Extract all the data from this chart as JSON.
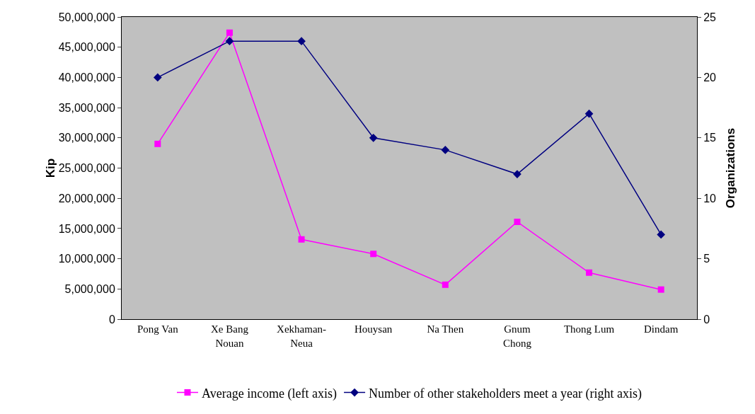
{
  "chart_data": {
    "type": "line",
    "ylabel": "Kip",
    "y2label": "Organizations",
    "categories": [
      "Pong Van",
      "Xe Bang\nNouan",
      "Xekhaman-\nNeua",
      "Houysan",
      "Na Then",
      "Gnum\nChong",
      "Thong Lum",
      "Dindam"
    ],
    "series": [
      {
        "name": "Average income (left axis)",
        "color": "#ff00ff",
        "marker": "square",
        "values": [
          29000000,
          47400000,
          13200000,
          10800000,
          5700000,
          16100000,
          7700000,
          4900000
        ]
      },
      {
        "name": "Number of other stakeholders meet a year (right axis)",
        "color": "#000080",
        "marker": "diamond",
        "axis": "y2",
        "values": [
          20,
          23,
          23,
          15,
          14,
          12,
          17,
          7
        ]
      }
    ],
    "ylim": [
      0,
      50000000
    ],
    "yticks": [
      {
        "value": 0,
        "label": "0"
      },
      {
        "value": 5000000,
        "label": "5,000,000"
      },
      {
        "value": 10000000,
        "label": "10,000,000"
      },
      {
        "value": 15000000,
        "label": "15,000,000"
      },
      {
        "value": 20000000,
        "label": "20,000,000"
      },
      {
        "value": 25000000,
        "label": "25,000,000"
      },
      {
        "value": 30000000,
        "label": "30,000,000"
      },
      {
        "value": 35000000,
        "label": "35,000,000"
      },
      {
        "value": 40000000,
        "label": "40,000,000"
      },
      {
        "value": 45000000,
        "label": "45,000,000"
      },
      {
        "value": 50000000,
        "label": "50,000,000"
      }
    ],
    "y2lim": [
      0,
      25
    ],
    "y2ticks": [
      0,
      5,
      10,
      15,
      20,
      25
    ],
    "grid": false,
    "legend": "bottom"
  }
}
